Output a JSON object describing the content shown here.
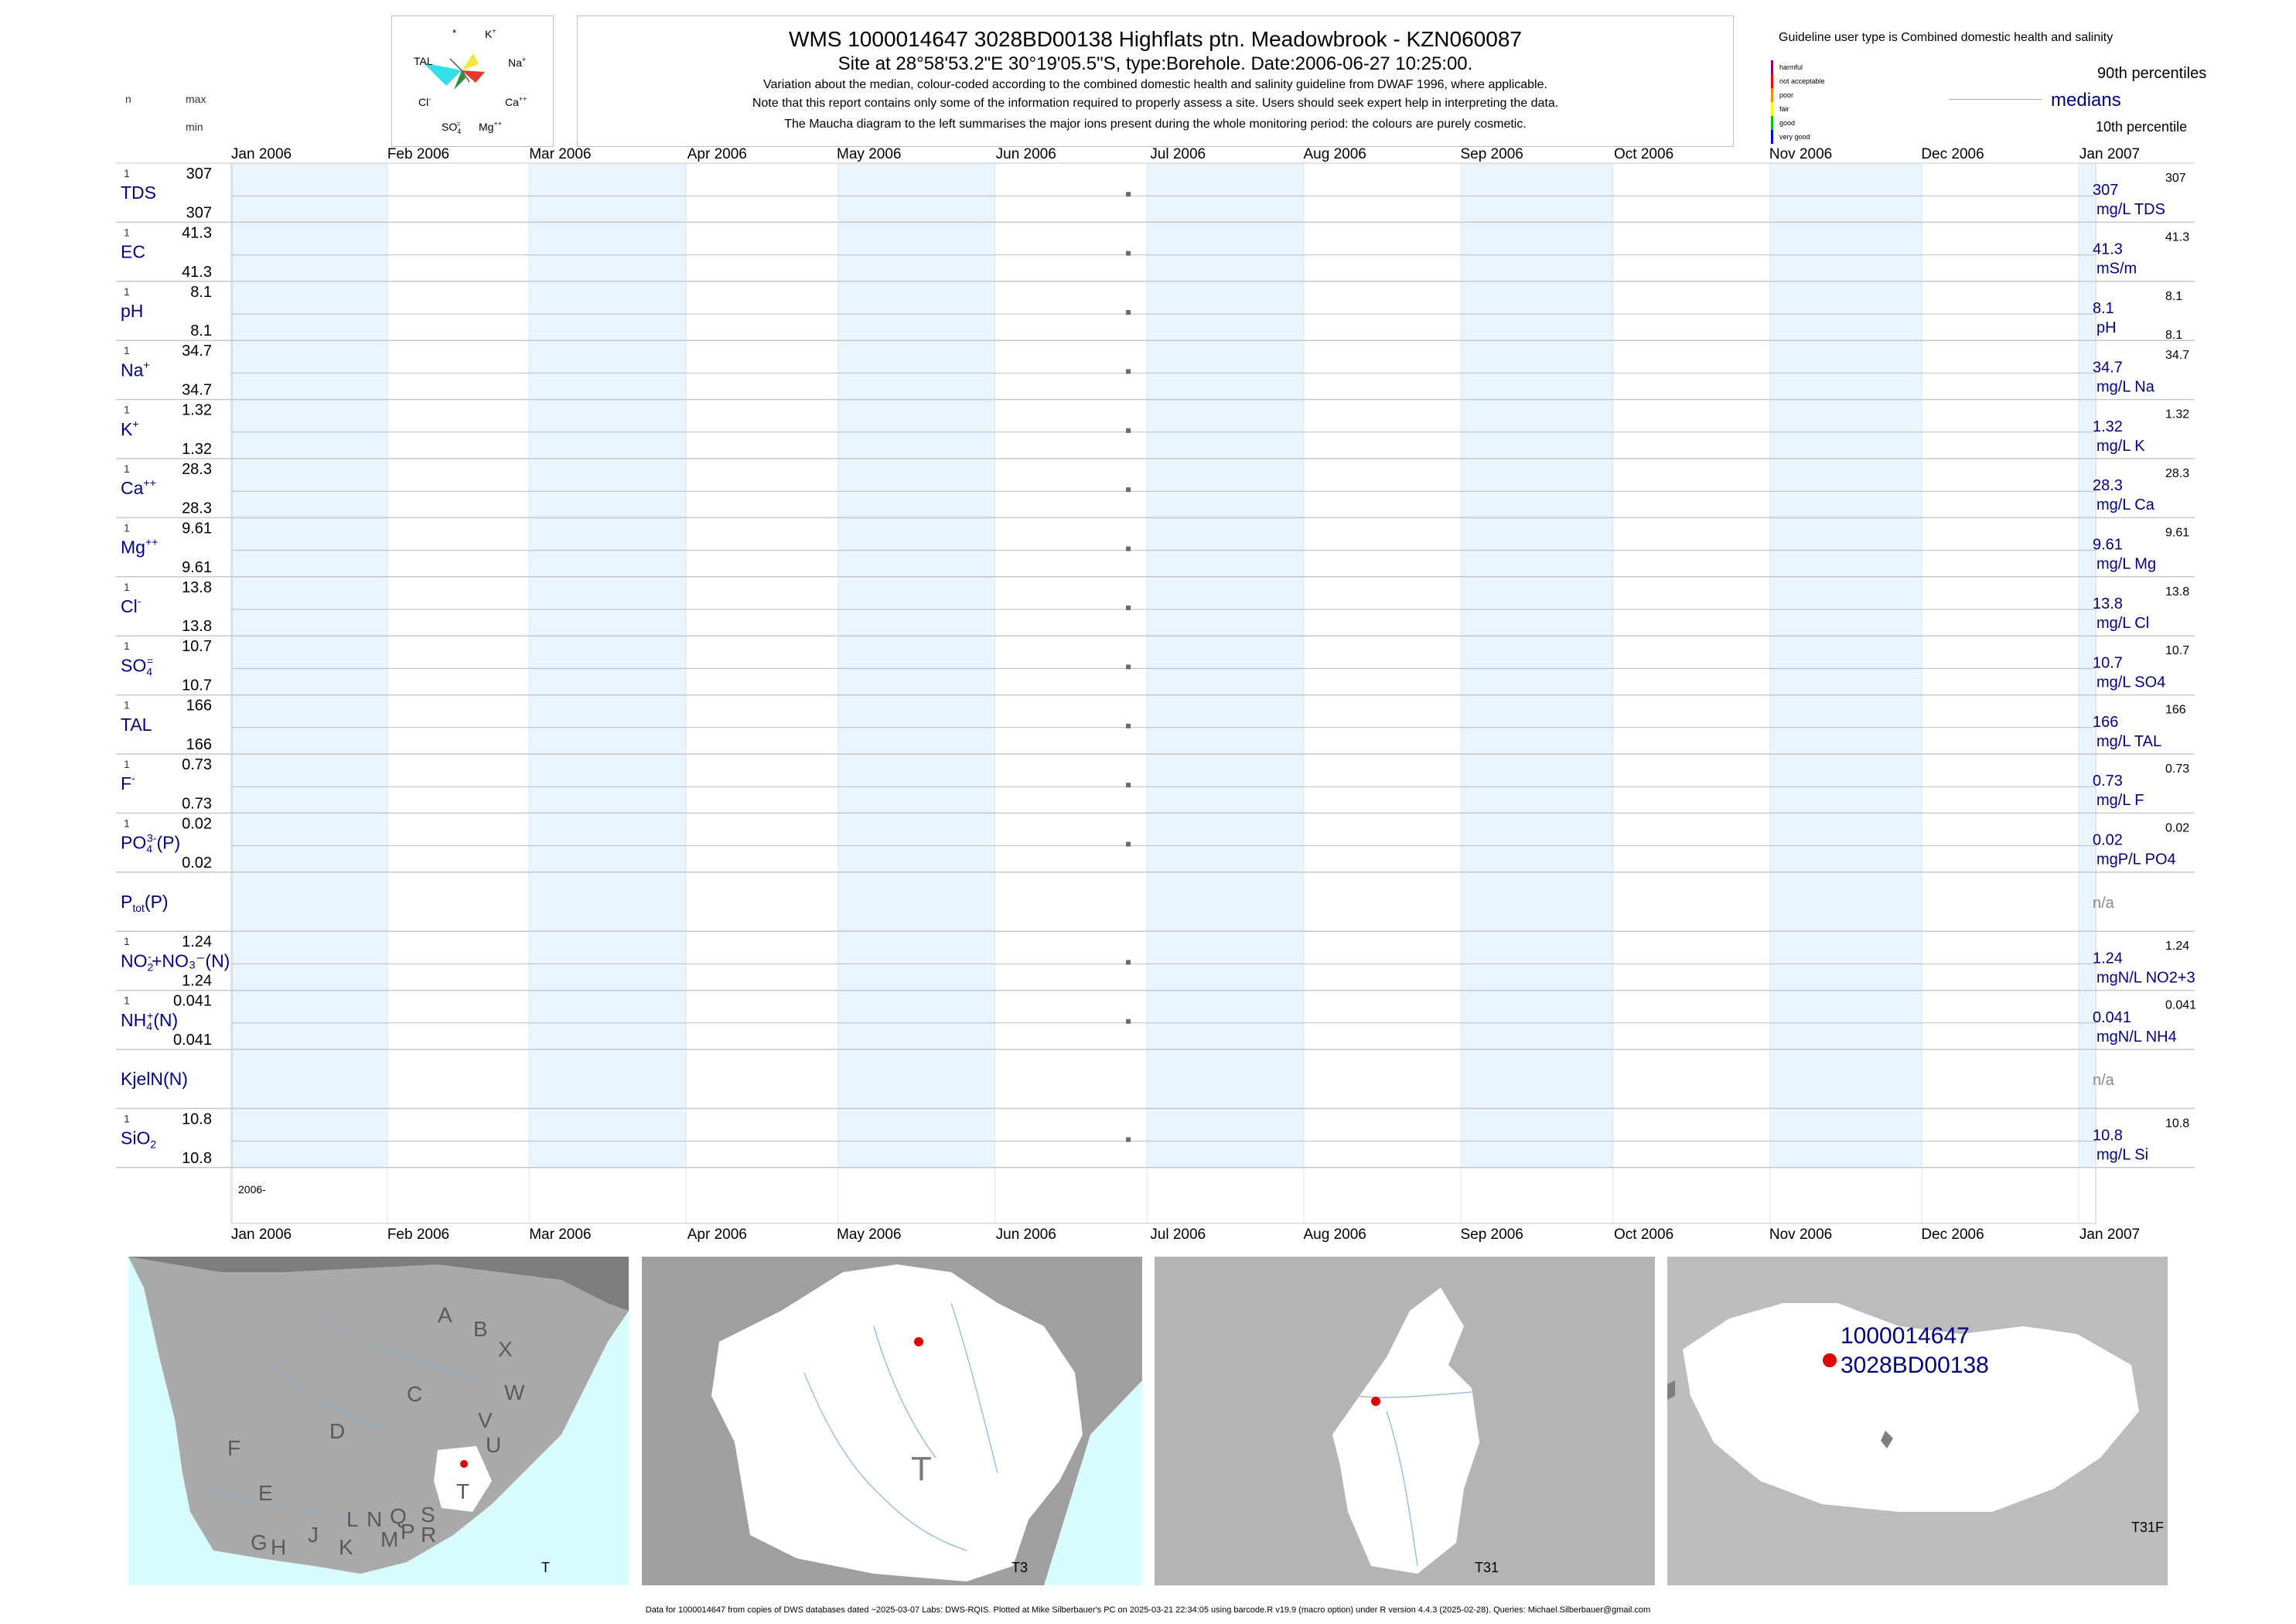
{
  "header": {
    "title": "WMS 1000014647 3028BD00138 Highflats ptn. Meadowbrook - KZN060087",
    "subtitle": "Site at 28°58'53.2\"E 30°19'05.5\"S, type:Borehole. Date:2006-06-27 10:25:00.",
    "notes": [
      "Variation about the median,  colour-coded according to the combined domestic health and salinity guideline from DWAF 1996, where applicable.",
      "Note that this report contains only some of the information required to properly assess a site. Users should seek expert help in interpreting the data.",
      "The Maucha diagram to the left summarises the major ions present during the whole monitoring period: the colours are purely cosmetic."
    ]
  },
  "maucha": {
    "labels": [
      "*",
      "K+",
      "Na+",
      "Ca++",
      "Mg++",
      "SO4=",
      "Cl-",
      "TAL"
    ],
    "colors": {
      "TAL": "#33e0e8",
      "Na": "#f5e642",
      "Ca": "#e83a2a",
      "Mg": "#2f8f3a",
      "K": "#7a7a7a"
    }
  },
  "left_header": {
    "n": "n",
    "max": "max",
    "min": "min"
  },
  "legend": {
    "guideline_title": "Guideline user type is Combined domestic health and salinity",
    "classes": [
      {
        "label": "harmful",
        "color": "#800080"
      },
      {
        "label": "not acceptable",
        "color": "#ff0000"
      },
      {
        "label": "poor",
        "color": "#ff8c00"
      },
      {
        "label": "fair",
        "color": "#ffff00"
      },
      {
        "label": "good",
        "color": "#00c000"
      },
      {
        "label": "very good",
        "color": "#0000ff"
      }
    ],
    "p90": "90th percentiles",
    "medians": "medians",
    "p10": "10th percentile"
  },
  "chart_data": {
    "type": "scatter",
    "x_range": [
      "2006-01-01",
      "2007-01-01"
    ],
    "x_ticks": [
      "Jan 2006",
      "Feb 2006",
      "Mar 2006",
      "Apr 2006",
      "May 2006",
      "Jun 2006",
      "Jul 2006",
      "Aug 2006",
      "Sep 2006",
      "Oct 2006",
      "Nov 2006",
      "Dec 2006",
      "Jan 2007"
    ],
    "sample_date": "2006-06-27",
    "year_label": "2006",
    "series": [
      {
        "param": "TDS",
        "sup": "",
        "sub": "",
        "suffix": "",
        "n": "1",
        "max": "307",
        "min": "307",
        "median": "307",
        "unit": "mg/L TDS",
        "p90": "307",
        "p10": ""
      },
      {
        "param": "EC",
        "sup": "",
        "sub": "",
        "suffix": "",
        "n": "1",
        "max": "41.3",
        "min": "41.3",
        "median": "41.3",
        "unit": "mS/m",
        "p90": "41.3",
        "p10": ""
      },
      {
        "param": "pH",
        "sup": "",
        "sub": "",
        "suffix": "",
        "n": "1",
        "max": "8.1",
        "min": "8.1",
        "median": "8.1",
        "unit": "pH",
        "p90": "8.1",
        "p10": "8.1"
      },
      {
        "param": "Na",
        "sup": "+",
        "sub": "",
        "suffix": "",
        "n": "1",
        "max": "34.7",
        "min": "34.7",
        "median": "34.7",
        "unit": "mg/L Na",
        "p90": "34.7",
        "p10": ""
      },
      {
        "param": "K",
        "sup": "+",
        "sub": "",
        "suffix": "",
        "n": "1",
        "max": "1.32",
        "min": "1.32",
        "median": "1.32",
        "unit": "mg/L K",
        "p90": "1.32",
        "p10": ""
      },
      {
        "param": "Ca",
        "sup": "++",
        "sub": "",
        "suffix": "",
        "n": "1",
        "max": "28.3",
        "min": "28.3",
        "median": "28.3",
        "unit": "mg/L Ca",
        "p90": "28.3",
        "p10": ""
      },
      {
        "param": "Mg",
        "sup": "++",
        "sub": "",
        "suffix": "",
        "n": "1",
        "max": "9.61",
        "min": "9.61",
        "median": "9.61",
        "unit": "mg/L Mg",
        "p90": "9.61",
        "p10": ""
      },
      {
        "param": "Cl",
        "sup": "-",
        "sub": "",
        "suffix": "",
        "n": "1",
        "max": "13.8",
        "min": "13.8",
        "median": "13.8",
        "unit": "mg/L Cl",
        "p90": "13.8",
        "p10": ""
      },
      {
        "param": "SO",
        "sup": "=",
        "sub": "4",
        "suffix": "",
        "n": "1",
        "max": "10.7",
        "min": "10.7",
        "median": "10.7",
        "unit": "mg/L SO4",
        "p90": "10.7",
        "p10": ""
      },
      {
        "param": "TAL",
        "sup": "",
        "sub": "",
        "suffix": "",
        "n": "1",
        "max": "166",
        "min": "166",
        "median": "166",
        "unit": "mg/L TAL",
        "p90": "166",
        "p10": ""
      },
      {
        "param": "F",
        "sup": "-",
        "sub": "",
        "suffix": "",
        "n": "1",
        "max": "0.73",
        "min": "0.73",
        "median": "0.73",
        "unit": "mg/L F",
        "p90": "0.73",
        "p10": ""
      },
      {
        "param": "PO",
        "sup": "3-",
        "sub": "4",
        "suffix": "(P)",
        "n": "1",
        "max": "0.02",
        "min": "0.02",
        "median": "0.02",
        "unit": "mgP/L PO4",
        "p90": "0.02",
        "p10": ""
      },
      {
        "param": "P",
        "sup": "",
        "sub": "tot",
        "suffix": "(P)",
        "n": "",
        "max": "",
        "min": "",
        "median": "n/a",
        "unit": "",
        "p90": "",
        "p10": "",
        "na": true
      },
      {
        "param": "NO",
        "sup": "-",
        "sub": "2",
        "suffix": "+NO₃⁻(N)",
        "n": "1",
        "max": "1.24",
        "min": "1.24",
        "median": "1.24",
        "unit": "mgN/L NO2+3",
        "p90": "1.24",
        "p10": ""
      },
      {
        "param": "NH",
        "sup": "+",
        "sub": "4",
        "suffix": "(N)",
        "n": "1",
        "max": "0.041",
        "min": "0.041",
        "median": "0.041",
        "unit": "mgN/L NH4",
        "p90": "0.041",
        "p10": ""
      },
      {
        "param": "KjelN(N)",
        "sup": "",
        "sub": "",
        "suffix": "",
        "n": "",
        "max": "",
        "min": "",
        "median": "n/a",
        "unit": "",
        "p90": "",
        "p10": "",
        "na": true
      },
      {
        "param": "SiO",
        "sup": "",
        "sub": "2",
        "suffix": "",
        "n": "1",
        "max": "10.8",
        "min": "10.8",
        "median": "10.8",
        "unit": "mg/L Si",
        "p90": "10.8",
        "p10": ""
      }
    ]
  },
  "maps": [
    {
      "label": "T",
      "region_letters": [
        "A",
        "B",
        "X",
        "W",
        "C",
        "V",
        "D",
        "U",
        "T",
        "F",
        "E",
        "S",
        "R",
        "Q",
        "N",
        "L",
        "M",
        "P",
        "G",
        "H",
        "J",
        "K"
      ]
    },
    {
      "label": "T3",
      "big_letter": "T"
    },
    {
      "label": "T31"
    },
    {
      "label": "T31F",
      "site_id": "1000014647",
      "site_code": "3028BD00138"
    }
  ],
  "footer": "Data for 1000014647 from copies of DWS databases dated ~2025-03-07 Labs: DWS-RQIS. Plotted at Mike Silberbauer's PC on 2025-03-21 22:34:05 using barcode.R v19.9 (macro option) under R version 4.4.3 (2025-02-28). Queries: Michael.Silberbauer@gmail.com"
}
